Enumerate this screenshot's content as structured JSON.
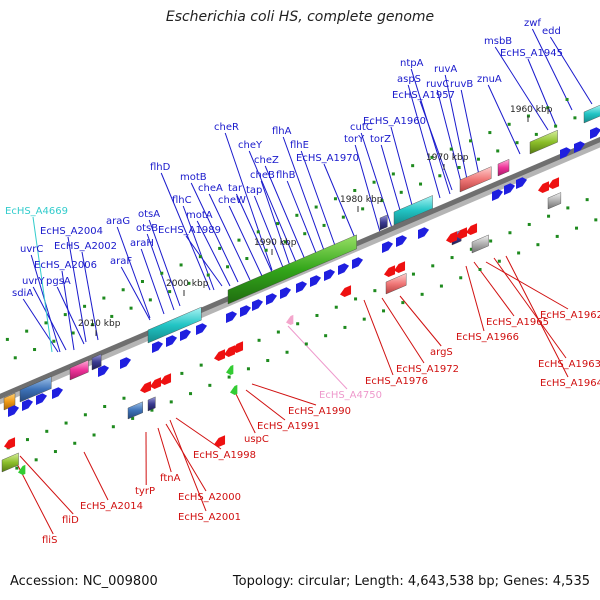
{
  "title": "Escherichia coli HS, complete genome",
  "footer": {
    "accession": "Accession: NC_009800",
    "summary": "Topology: circular; Length: 4,643,538 bp; Genes: 4,535"
  },
  "colors": {
    "forward_label": "#1a1acc",
    "reverse_label": "#d01010",
    "highlight_cyan": "#33cccc",
    "highlight_pink": "#ee99cc",
    "backbone": "#7a7a7a"
  },
  "ruler": {
    "ticks": [
      {
        "label": "2010 kbp"
      },
      {
        "label": "2000 kbp"
      },
      {
        "label": "1990 kbp"
      },
      {
        "label": "1980 kbp"
      },
      {
        "label": "1970 kbp"
      },
      {
        "label": "1960 kbp"
      }
    ]
  },
  "forward_genes": [
    {
      "label": "sdiA"
    },
    {
      "label": "uvrY"
    },
    {
      "label": "EcHS_A2006"
    },
    {
      "label": "uvrC"
    },
    {
      "label": "EcHS_A4669",
      "highlight": "cyan"
    },
    {
      "label": "pgsA"
    },
    {
      "label": "EcHS_A2004"
    },
    {
      "label": "EcHS_A2002"
    },
    {
      "label": "araF"
    },
    {
      "label": "araG"
    },
    {
      "label": "araH"
    },
    {
      "label": "otsB"
    },
    {
      "label": "otsA"
    },
    {
      "label": "flhC"
    },
    {
      "label": "flhD"
    },
    {
      "label": "EcHS_A1989"
    },
    {
      "label": "motA"
    },
    {
      "label": "motB"
    },
    {
      "label": "cheA"
    },
    {
      "label": "cheW"
    },
    {
      "label": "tar"
    },
    {
      "label": "tap"
    },
    {
      "label": "cheR"
    },
    {
      "label": "cheB"
    },
    {
      "label": "cheY"
    },
    {
      "label": "cheZ"
    },
    {
      "label": "flhB"
    },
    {
      "label": "flhA"
    },
    {
      "label": "flhE"
    },
    {
      "label": "EcHS_A1970"
    },
    {
      "label": "torY"
    },
    {
      "label": "cutC"
    },
    {
      "label": "torZ"
    },
    {
      "label": "EcHS_A1960"
    },
    {
      "label": "aspS"
    },
    {
      "label": "ntpA"
    },
    {
      "label": "EcHS_A1957"
    },
    {
      "label": "ruvC"
    },
    {
      "label": "ruvA"
    },
    {
      "label": "ruvB"
    },
    {
      "label": "znuA"
    },
    {
      "label": "msbB"
    },
    {
      "label": "EcHS_A1945"
    },
    {
      "label": "zwf"
    },
    {
      "label": "edd"
    }
  ],
  "reverse_genes": [
    {
      "label": "fliS"
    },
    {
      "label": "fliD"
    },
    {
      "label": "EcHS_A2014"
    },
    {
      "label": "tyrP"
    },
    {
      "label": "ftnA"
    },
    {
      "label": "EcHS_A2000"
    },
    {
      "label": "EcHS_A2001"
    },
    {
      "label": "EcHS_A1998"
    },
    {
      "label": "uspC"
    },
    {
      "label": "EcHS_A1991"
    },
    {
      "label": "EcHS_A1990"
    },
    {
      "label": "EcHS_A4750",
      "highlight": "pink"
    },
    {
      "label": "EcHS_A1976"
    },
    {
      "label": "EcHS_A1972"
    },
    {
      "label": "argS"
    },
    {
      "label": "EcHS_A1966"
    },
    {
      "label": "EcHS_A1965"
    },
    {
      "label": "EcHS_A1962"
    },
    {
      "label": "EcHS_A1963"
    },
    {
      "label": "EcHS_A1964"
    }
  ]
}
